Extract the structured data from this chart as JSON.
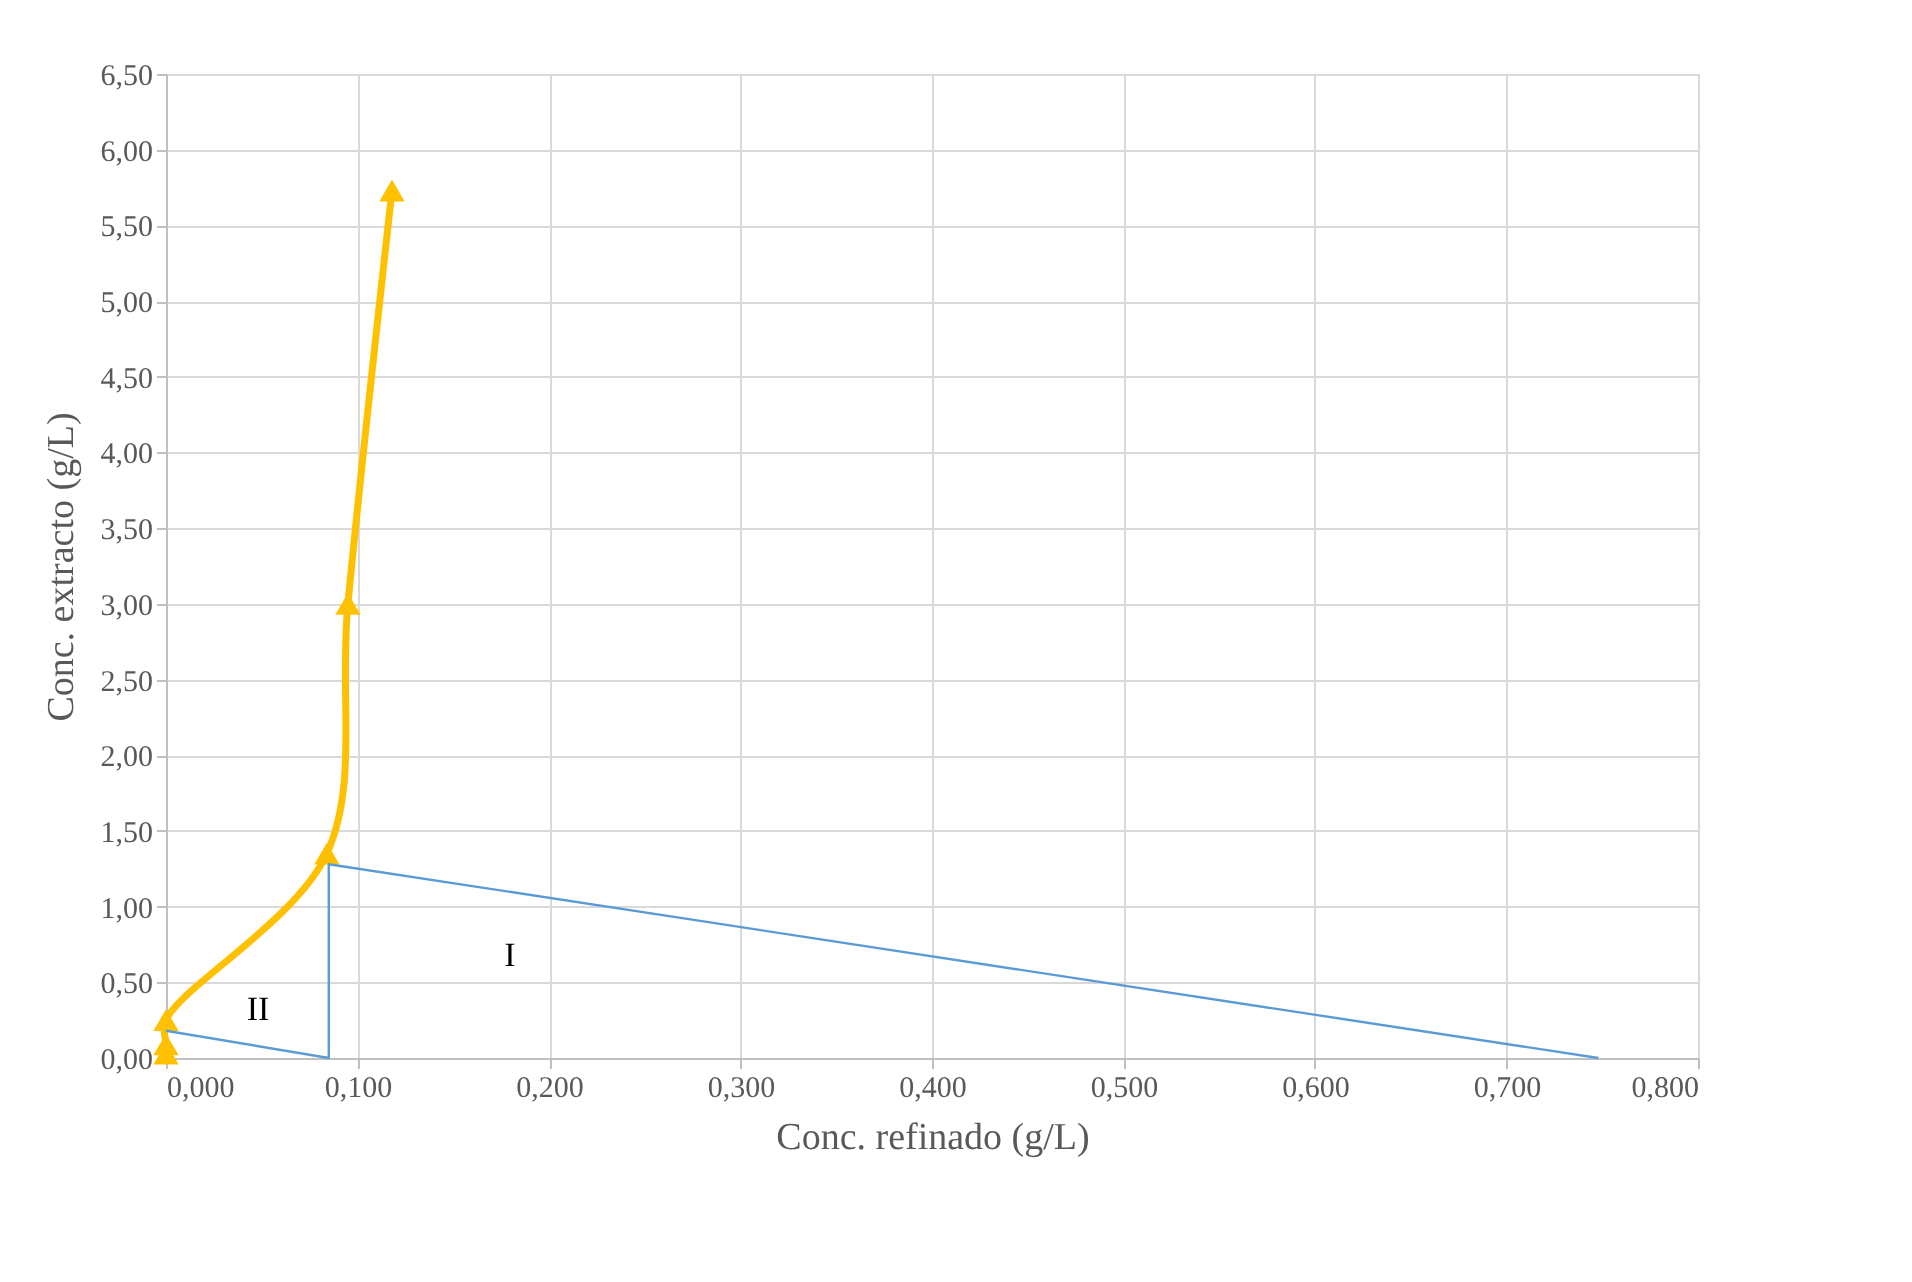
{
  "chart_data": {
    "type": "line",
    "xlabel": "Conc. refinado (g/L)",
    "ylabel": "Conc. extracto (g/L)",
    "xlim": [
      0,
      0.8
    ],
    "ylim": [
      0,
      6.5
    ],
    "xticks": [
      {
        "value": 0,
        "label": "0,000"
      },
      {
        "value": 0.1,
        "label": "0,100"
      },
      {
        "value": 0.2,
        "label": "0,200"
      },
      {
        "value": 0.3,
        "label": "0,300"
      },
      {
        "value": 0.4,
        "label": "0,400"
      },
      {
        "value": 0.5,
        "label": "0,500"
      },
      {
        "value": 0.6,
        "label": "0,600"
      },
      {
        "value": 0.7,
        "label": "0,700"
      },
      {
        "value": 0.8,
        "label": "0,800"
      }
    ],
    "yticks": [
      {
        "value": 0,
        "label": "0,00"
      },
      {
        "value": 0.5,
        "label": "0,50"
      },
      {
        "value": 1,
        "label": "1,00"
      },
      {
        "value": 1.5,
        "label": "1,50"
      },
      {
        "value": 2,
        "label": "2,00"
      },
      {
        "value": 2.5,
        "label": "2,50"
      },
      {
        "value": 3,
        "label": "3,00"
      },
      {
        "value": 3.5,
        "label": "3,50"
      },
      {
        "value": 4,
        "label": "4,00"
      },
      {
        "value": 4.5,
        "label": "4,50"
      },
      {
        "value": 5,
        "label": "5,00"
      },
      {
        "value": 5.5,
        "label": "5,50"
      },
      {
        "value": 6,
        "label": "6,00"
      },
      {
        "value": 6.5,
        "label": "6,50"
      }
    ],
    "grid": true,
    "series": [
      {
        "color": "#ffc000",
        "marker": "triangle",
        "x": [
          0,
          0,
          0,
          0.084,
          0.095,
          0.118
        ],
        "values": [
          0.03,
          0.09,
          0.25,
          1.35,
          3.0,
          5.73
        ]
      },
      {
        "color": "#5b9bd5",
        "marker": "none",
        "x": [
          0.748,
          0.085,
          0.085,
          0
        ],
        "values": [
          0,
          1.28,
          0,
          0.18
        ]
      }
    ],
    "annotations": [
      "I",
      "II"
    ]
  }
}
